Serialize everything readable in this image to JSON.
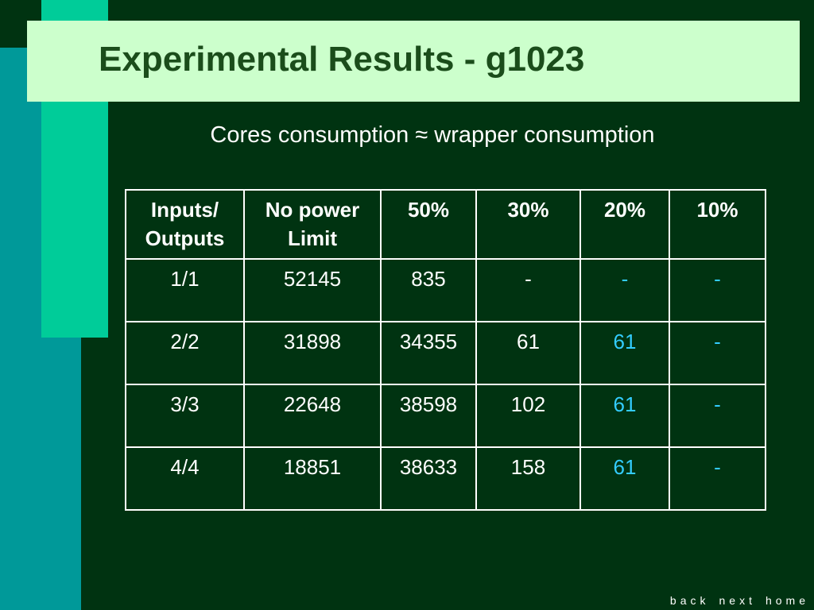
{
  "header": {
    "title": "Experimental Results - g1023",
    "subtitle": "Cores consumption ≈ wrapper consumption"
  },
  "table": {
    "columns": [
      "Inputs/ Outputs",
      "No power Limit",
      "50%",
      "30%",
      "20%",
      "10%"
    ],
    "rows": [
      [
        "1/1",
        "52145",
        "835",
        "-",
        "-",
        "-"
      ],
      [
        "2/2",
        "31898",
        "34355",
        "61",
        "61",
        "-"
      ],
      [
        "3/3",
        "22648",
        "38598",
        "102",
        "61",
        "-"
      ],
      [
        "4/4",
        "18851",
        "38633",
        "158",
        "61",
        "-"
      ]
    ]
  },
  "nav": [
    "back",
    "next",
    "home"
  ]
}
